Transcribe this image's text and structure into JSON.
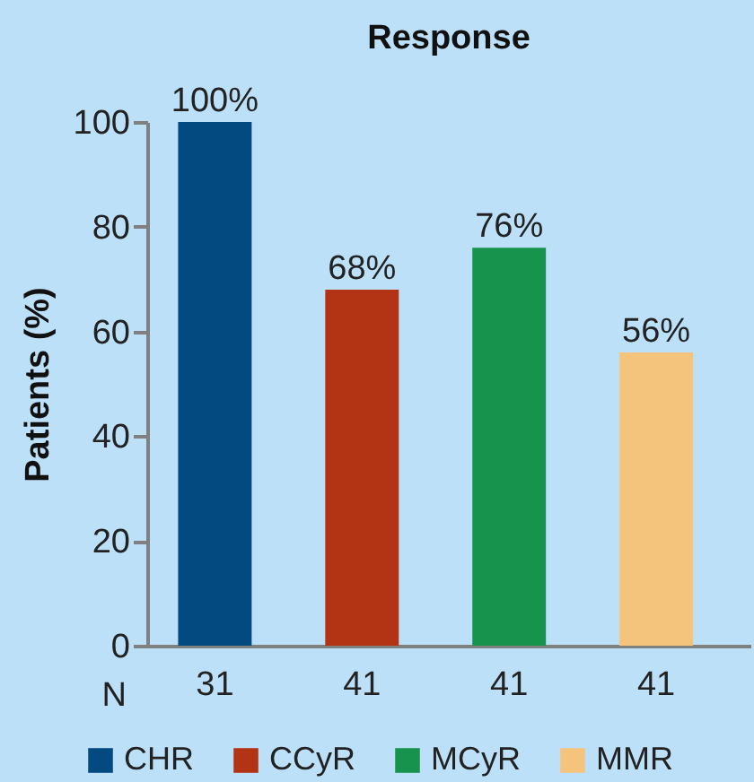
{
  "chart_data": {
    "type": "bar",
    "title": "Response",
    "ylabel": "Patients (%)",
    "xlabel": "N",
    "categories": [
      "31",
      "41",
      "41",
      "41"
    ],
    "series": [
      {
        "name": "CHR",
        "color": "#034a80",
        "values": [
          100,
          null,
          null,
          null
        ],
        "value_labels": [
          "100%",
          null,
          null,
          null
        ]
      },
      {
        "name": "CCyR",
        "color": "#b33414",
        "values": [
          null,
          68,
          null,
          null
        ],
        "value_labels": [
          null,
          "68%",
          null,
          null
        ]
      },
      {
        "name": "MCyR",
        "color": "#18934e",
        "values": [
          null,
          null,
          76,
          null
        ],
        "value_labels": [
          null,
          null,
          "76%",
          null
        ]
      },
      {
        "name": "MMR",
        "color": "#f5c47c",
        "values": [
          null,
          null,
          null,
          56
        ],
        "value_labels": [
          null,
          null,
          null,
          "56%"
        ]
      }
    ],
    "ylim": [
      0,
      100
    ],
    "yticks": [
      0,
      20,
      40,
      60,
      80,
      100
    ],
    "grid": false,
    "legend": "bottom"
  }
}
